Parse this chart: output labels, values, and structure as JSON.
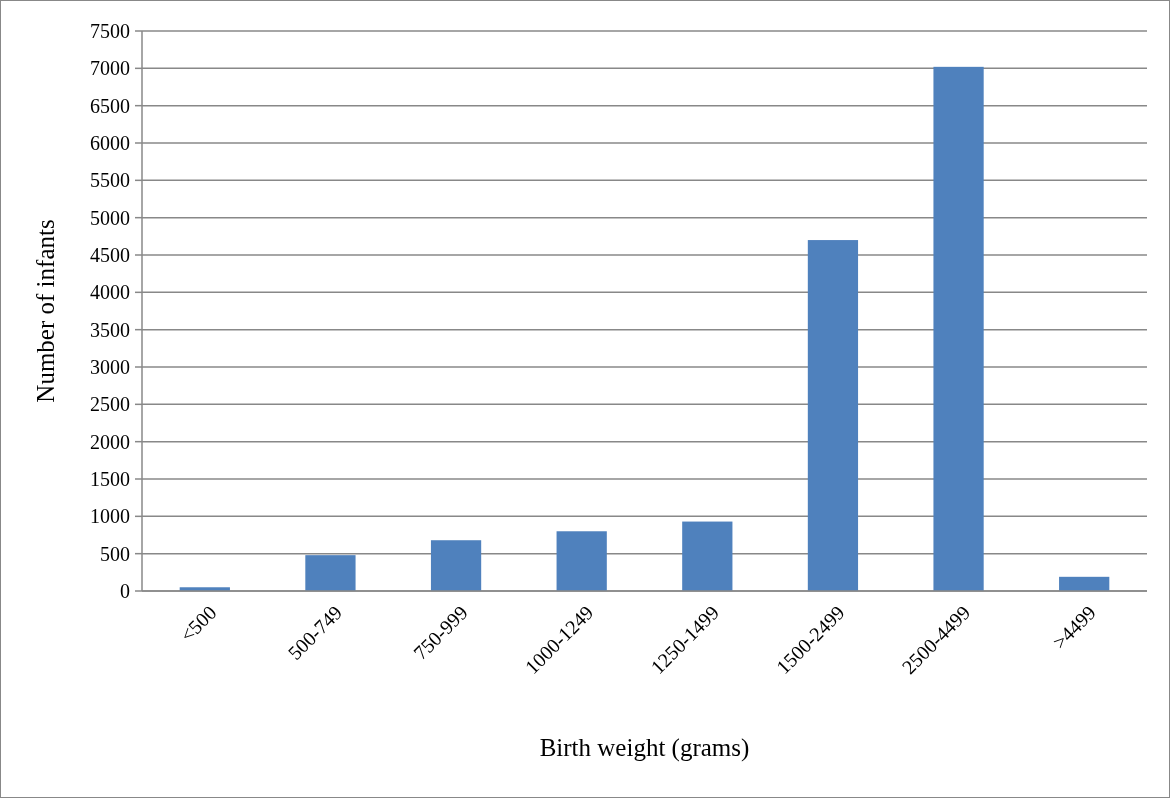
{
  "chart_data": {
    "type": "bar",
    "xlabel": "Birth weight (grams)",
    "ylabel": "Number of infants",
    "categories": [
      "<500",
      "500-749",
      "750-999",
      "1000-1249",
      "1250-1499",
      "1500-2499",
      "2500-4499",
      ">4499"
    ],
    "values": [
      50,
      480,
      680,
      800,
      930,
      4700,
      7020,
      190
    ],
    "color": "#4f81bd",
    "ylim": [
      0,
      7500
    ],
    "yticks": [
      0,
      500,
      1000,
      1500,
      2000,
      2500,
      3000,
      3500,
      4000,
      4500,
      5000,
      5500,
      6000,
      6500,
      7000,
      7500
    ],
    "grid": "y"
  }
}
